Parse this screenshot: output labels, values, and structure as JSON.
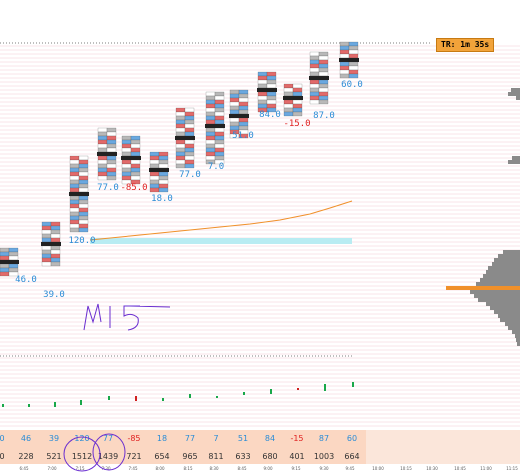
{
  "timer": {
    "label": "TR: 1m 35s"
  },
  "colors": {
    "pos_delta": "#2b8cd6",
    "neg_delta": "#e02020",
    "vwap": "#f0902a",
    "poc": "#f0902a",
    "profile": "#8a8a8a",
    "bar_up": "#19a84a",
    "bar_down": "#d02020",
    "cell_buy": "#6aa8e0",
    "cell_sell": "#e26a6a",
    "cell_neutral": "#b8b8b8",
    "annotation": "#6a2ed0",
    "grid": "#f3c8d2"
  },
  "annotation_text": "M15",
  "candle_deltas": [
    "46.0",
    "39.0",
    "120.0",
    "77.0",
    "-85.0",
    "18.0",
    "77.0",
    "7.0",
    "51.0",
    "84.0",
    "-15.0",
    "87.0",
    "60.0"
  ],
  "delta_row": [
    "46",
    "39",
    "120",
    "77",
    "-85",
    "18",
    "77",
    "7",
    "51",
    "84",
    "-15",
    "87",
    "60"
  ],
  "volume_row": [
    "228",
    "521",
    "1512",
    "1439",
    "721",
    "654",
    "965",
    "811",
    "633",
    "680",
    "401",
    "1003",
    "664"
  ],
  "edge_values": {
    "delta": "0",
    "volume": "0"
  },
  "time_labels": [
    "6:45",
    "7:00",
    "7:15",
    "7:30",
    "7:45",
    "8:00",
    "8:15",
    "8:30",
    "8:45",
    "9:00",
    "9:15",
    "9:30",
    "9:45",
    "10:00",
    "10:15",
    "10:30",
    "10:45",
    "11:00",
    "11:15"
  ]
}
